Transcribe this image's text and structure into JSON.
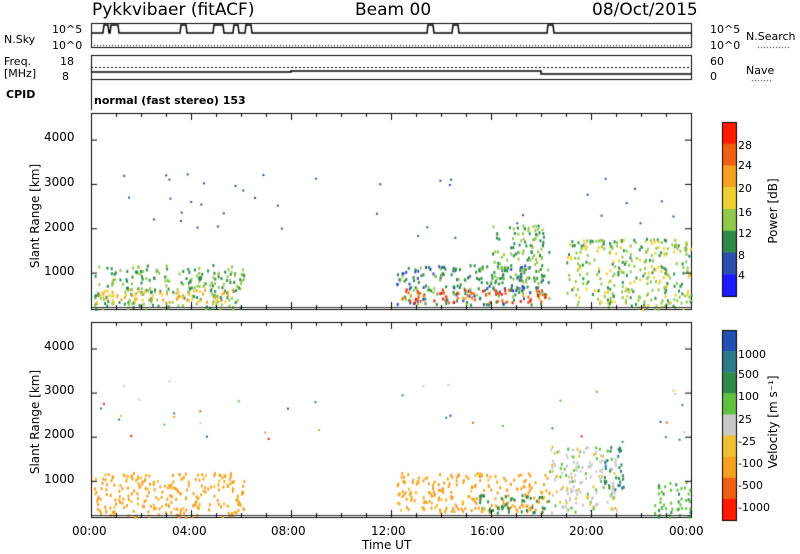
{
  "header": {
    "station": "Pykkvibaer (fitACF)",
    "beam": "Beam 00",
    "date": "08/Oct/2015"
  },
  "top_panels": {
    "nsky_label": "N.Sky",
    "nsky_ticks": [
      "10^5",
      "10^0"
    ],
    "nsearch_label": "N.Search",
    "nsearch_ticks": [
      "10^5",
      "10^0"
    ],
    "freq_label": "Freq.",
    "freq_unit": "[MHz]",
    "freq_ticks": [
      "18",
      "8"
    ],
    "nave_label": "Nave",
    "nave_ticks": [
      "60",
      "0"
    ],
    "cpid_label": "CPID",
    "cpid_text": "normal (fast stereo) 153"
  },
  "chart_data": [
    {
      "type": "heatmap",
      "title": "",
      "ylabel": "Slant Range [km]",
      "xlabel": "",
      "yticks": [
        "1000",
        "2000",
        "3000",
        "4000"
      ],
      "ylim": [
        180,
        4600
      ],
      "xlim": [
        0,
        24
      ],
      "colorbar": {
        "label": "Power [dB]",
        "ticks": [
          "28",
          "24",
          "20",
          "16",
          "12",
          "8",
          "4"
        ],
        "range": [
          0,
          32
        ],
        "colors": [
          "#1a1aff",
          "#2a4fb0",
          "#2e8a4a",
          "#8fc84a",
          "#f0d030",
          "#f5a020",
          "#f06010",
          "#ff1a00"
        ]
      },
      "regions": [
        {
          "t0": 0.1,
          "t1": 6.1,
          "r0": 200,
          "r1": 1200,
          "level": 12
        },
        {
          "t0": 0.2,
          "t1": 5.8,
          "r0": 350,
          "r1": 650,
          "level": 20
        },
        {
          "t0": 12.2,
          "t1": 18.3,
          "r0": 300,
          "r1": 1200,
          "level": 10
        },
        {
          "t0": 12.3,
          "t1": 18.2,
          "r0": 350,
          "r1": 650,
          "level": 27
        },
        {
          "t0": 16.0,
          "t1": 18.3,
          "r0": 800,
          "r1": 2100,
          "level": 12
        },
        {
          "t0": 19.0,
          "t1": 24.0,
          "r0": 200,
          "r1": 1800,
          "level": 14
        }
      ]
    },
    {
      "type": "heatmap",
      "title": "",
      "ylabel": "Slant Range [km]",
      "xlabel": "Time UT",
      "xticks": [
        "00:00",
        "04:00",
        "08:00",
        "12:00",
        "16:00",
        "20:00",
        "00:00"
      ],
      "yticks": [
        "1000",
        "2000",
        "3000",
        "4000"
      ],
      "ylim": [
        180,
        4600
      ],
      "xlim": [
        0,
        24
      ],
      "colorbar": {
        "label": "Velocity [m s⁻¹]",
        "ticks": [
          "1000",
          "500",
          "100",
          "25",
          "-25",
          "-100",
          "-500",
          "-1000"
        ],
        "colors": [
          "#2050b0",
          "#2a7a8a",
          "#2e8a4a",
          "#60c040",
          "#c8c8c8",
          "#f0c030",
          "#f5a020",
          "#f06010",
          "#ff1a00"
        ]
      },
      "regions": [
        {
          "t0": 0.1,
          "t1": 6.1,
          "r0": 200,
          "r1": 1200,
          "level": -150
        },
        {
          "t0": 12.2,
          "t1": 18.3,
          "r0": 300,
          "r1": 1200,
          "level": -150
        },
        {
          "t0": 15.5,
          "t1": 18.3,
          "r0": 300,
          "r1": 700,
          "level": 200
        },
        {
          "t0": 18.3,
          "t1": 21.0,
          "r0": 300,
          "r1": 1800,
          "level": 0
        },
        {
          "t0": 20.5,
          "t1": 21.3,
          "r0": 800,
          "r1": 1800,
          "level": 500
        },
        {
          "t0": 22.5,
          "t1": 24.0,
          "r0": 200,
          "r1": 1000,
          "level": 80
        }
      ]
    }
  ]
}
